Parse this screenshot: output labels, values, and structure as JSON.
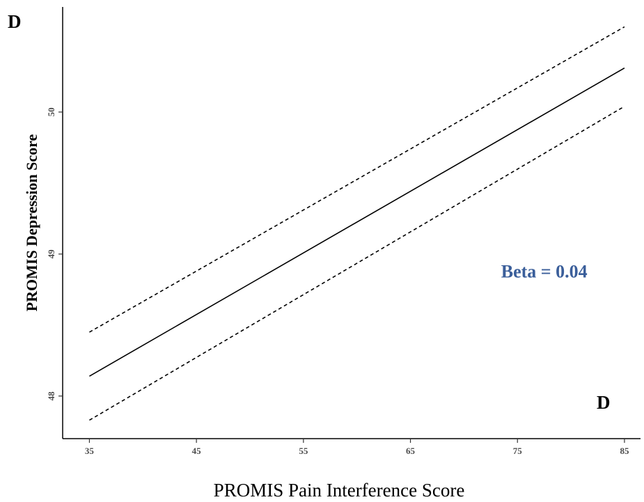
{
  "chart_data": {
    "type": "line",
    "panel_label": "D",
    "panel_label_inset": "D",
    "xlabel": "PROMIS Pain Interference Score",
    "ylabel": "PROMIS Depression Score",
    "xlim": [
      32.5,
      86.5
    ],
    "ylim": [
      47.7,
      50.74
    ],
    "x_ticks": [
      35,
      45,
      55,
      65,
      75,
      85
    ],
    "x_tick_labels": [
      "35",
      "45",
      "55",
      "65",
      "75",
      "85"
    ],
    "y_ticks": [
      48,
      49,
      50
    ],
    "y_tick_labels": [
      "48",
      "49",
      "50"
    ],
    "grid": false,
    "series": [
      {
        "line_style": "solid",
        "x": [
          35,
          85
        ],
        "y": [
          48.14,
          50.31
        ]
      },
      {
        "line_style": "dashed",
        "x": [
          35,
          85
        ],
        "y": [
          48.45,
          50.6
        ]
      },
      {
        "line_style": "dashed",
        "x": [
          35,
          85
        ],
        "y": [
          47.83,
          50.04
        ]
      }
    ],
    "annotation": {
      "text": "Beta = 0.04",
      "x": 77.5,
      "y": 48.88,
      "color": "#3a5e9a"
    }
  }
}
